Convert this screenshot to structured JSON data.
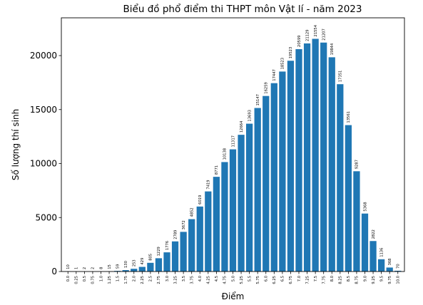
{
  "chart_data": {
    "type": "bar",
    "title": "Biểu đồ phổ điểm thi THPT môn Vật lí - năm 2023",
    "xlabel": "Điểm",
    "ylabel": "Số lượng thí sinh",
    "ylim": [
      0,
      23500
    ],
    "yticks": [
      0,
      5000,
      10000,
      15000,
      20000
    ],
    "grid": false,
    "bar_color": "#1f77b4",
    "categories": [
      "0.0",
      "0.25",
      "0.5",
      "0.75",
      "1.0",
      "1.25",
      "1.5",
      "1.75",
      "2.0",
      "2.25",
      "2.5",
      "2.75",
      "3.0",
      "3.25",
      "3.5",
      "3.75",
      "4.0",
      "4.25",
      "4.5",
      "4.75",
      "5.0",
      "5.25",
      "5.5",
      "5.75",
      "6.0",
      "6.25",
      "6.5",
      "6.75",
      "7.0",
      "7.25",
      "7.5",
      "7.75",
      "8.0",
      "8.25",
      "8.5",
      "8.75",
      "9.0",
      "9.25",
      "9.5",
      "9.75",
      "10.0"
    ],
    "values": [
      10,
      1,
      2,
      2,
      8,
      15,
      59,
      130,
      253,
      429,
      805,
      1229,
      1776,
      2789,
      3672,
      4852,
      6019,
      7419,
      8771,
      10138,
      11317,
      12664,
      13693,
      15147,
      16259,
      17447,
      18523,
      19523,
      20599,
      21129,
      21554,
      21207,
      19844,
      17351,
      13561,
      9287,
      5368,
      2822,
      1136,
      368,
      70
    ]
  }
}
